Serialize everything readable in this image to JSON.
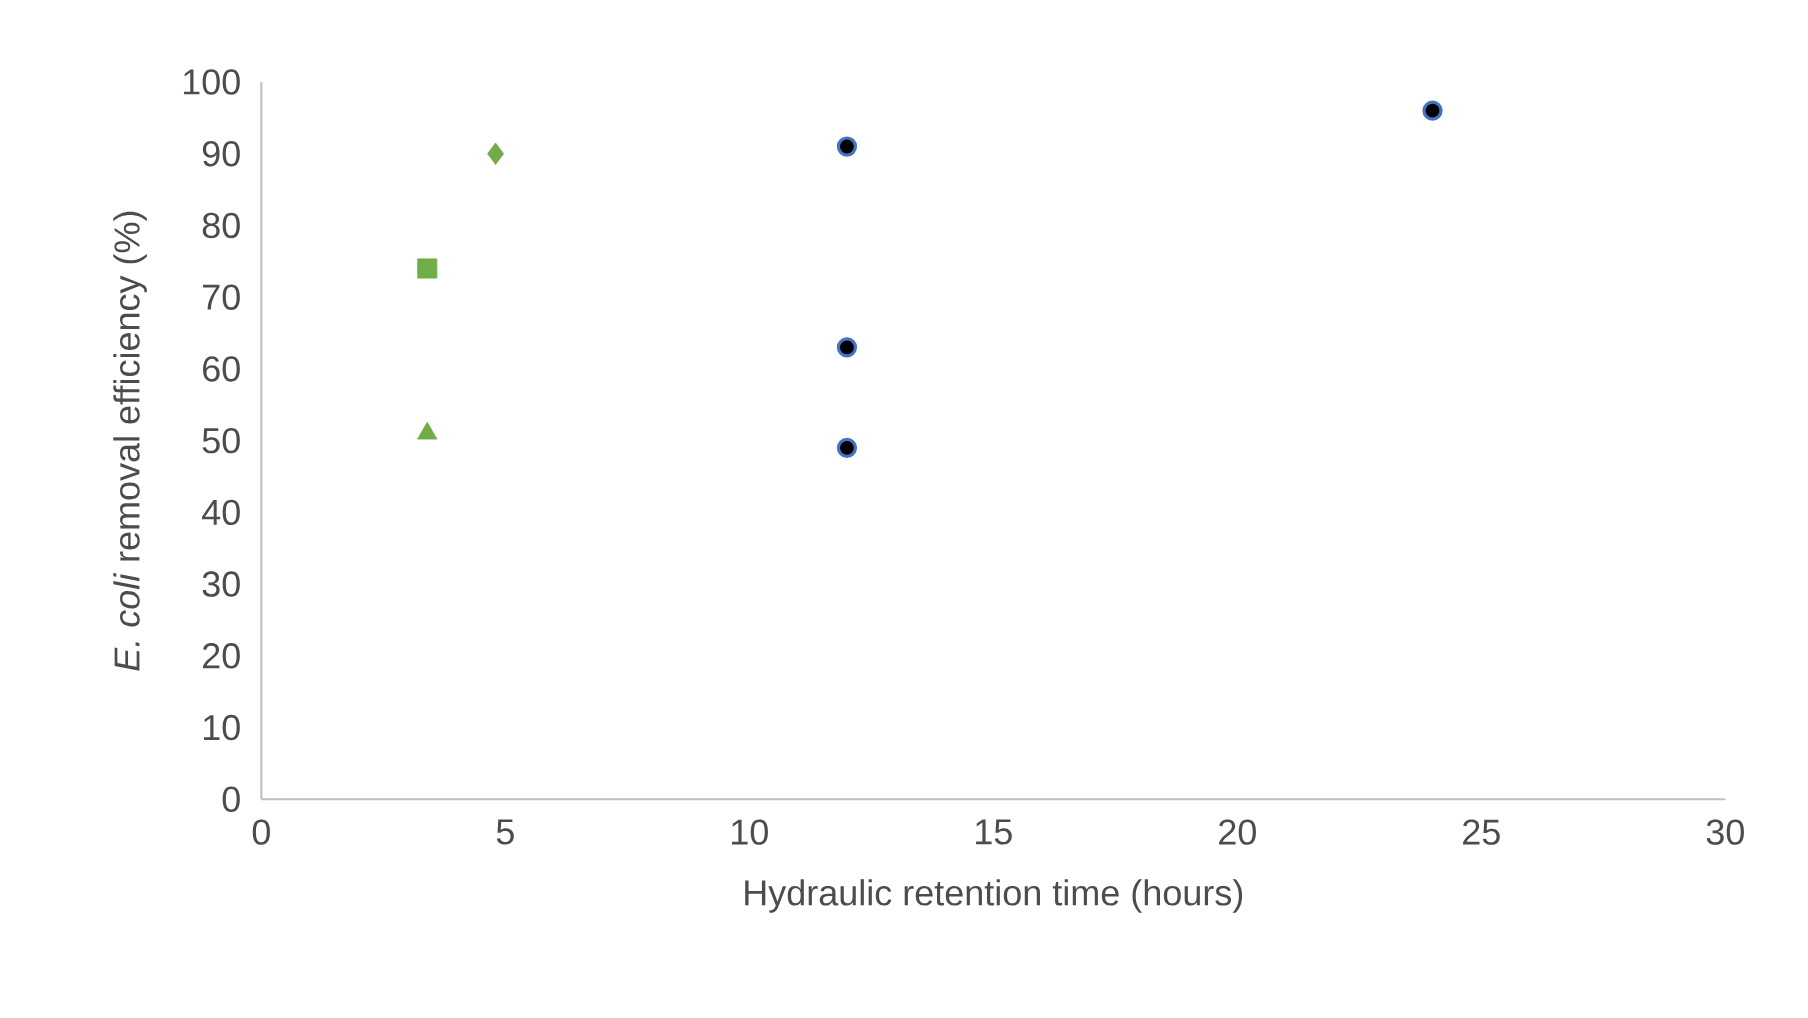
{
  "chart_data": {
    "type": "scatter",
    "xlabel": "Hydraulic retention time (hours)",
    "ylabel": "*E. coli* removal efficiency (%)",
    "series": [
      {
        "color": "#70ad47",
        "marker": "diamond",
        "x": [
          4.8
        ],
        "values": [
          90
        ]
      },
      {
        "color": "#70ad47",
        "marker": "square",
        "x": [
          3.4
        ],
        "values": [
          74
        ]
      },
      {
        "color": "#70ad47",
        "marker": "triangle",
        "x": [
          3.4
        ],
        "values": [
          51
        ]
      },
      {
        "color": "#000000",
        "marker": "circle",
        "x": [
          12,
          12,
          12,
          24
        ],
        "values": [
          91,
          63,
          49,
          96
        ]
      }
    ],
    "xlim": [
      0,
      30
    ],
    "ylim": [
      0,
      100
    ],
    "xticks": [
      0,
      5,
      10,
      15,
      20,
      25,
      30
    ],
    "yticks": [
      0,
      10,
      20,
      30,
      40,
      50,
      60,
      70,
      80,
      90,
      100
    ],
    "grid": false
  }
}
